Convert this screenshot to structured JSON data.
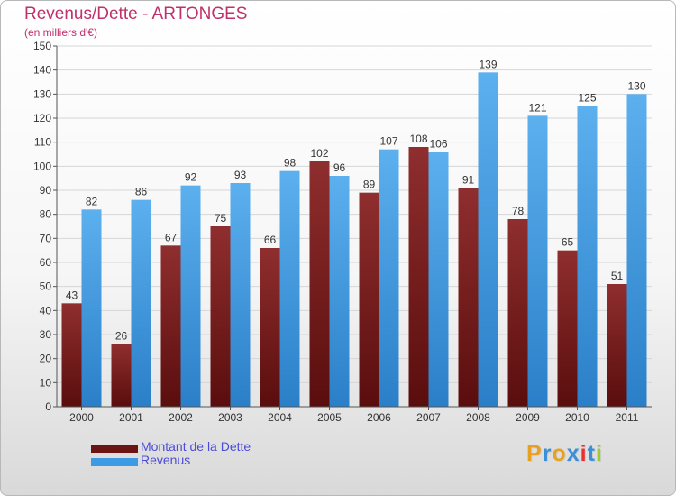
{
  "header": {
    "title": "Revenus/Dette - ARTONGES",
    "subtitle": "(en milliers d'€)"
  },
  "legend": {
    "items": [
      {
        "label": "Montant de la Dette",
        "color": "#7a1a1a"
      },
      {
        "label": "Revenus",
        "color": "#3d9be6"
      }
    ]
  },
  "logo": {
    "text": "Proxiti",
    "colors": [
      "#e8a020",
      "#3a8fd8",
      "#e8a020",
      "#3a8fd8",
      "#e83030",
      "#3a8fd8",
      "#9acd32"
    ]
  },
  "chart_data": {
    "type": "bar",
    "title": "Revenus/Dette - ARTONGES",
    "subtitle": "(en milliers d'€)",
    "categories": [
      "2000",
      "2001",
      "2002",
      "2003",
      "2004",
      "2005",
      "2006",
      "2007",
      "2008",
      "2009",
      "2010",
      "2011"
    ],
    "series": [
      {
        "name": "Montant de la Dette",
        "color": "#7a1a1a",
        "values": [
          43,
          26,
          67,
          75,
          66,
          102,
          89,
          108,
          91,
          78,
          65,
          51
        ]
      },
      {
        "name": "Revenus",
        "color": "#3d9be6",
        "values": [
          82,
          86,
          92,
          93,
          98,
          96,
          107,
          106,
          139,
          121,
          125,
          130
        ]
      }
    ],
    "ylim": [
      0,
      150
    ],
    "yticks": [
      0,
      10,
      20,
      30,
      40,
      50,
      60,
      70,
      80,
      90,
      100,
      110,
      120,
      130,
      140,
      150
    ],
    "grid": true,
    "legend_position": "bottom-left"
  }
}
